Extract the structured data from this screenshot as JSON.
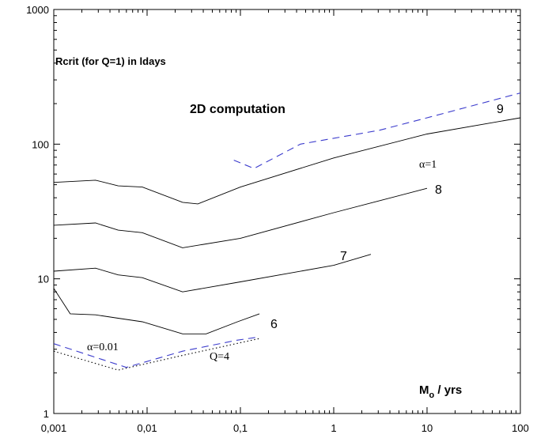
{
  "chart_data": {
    "type": "line",
    "xlog": true,
    "ylog": true,
    "xlim": [
      0.001,
      100
    ],
    "ylim": [
      1,
      1000
    ],
    "xticks": [
      {
        "value": 0.001,
        "label": "0,001"
      },
      {
        "value": 0.01,
        "label": "0,01"
      },
      {
        "value": 0.1,
        "label": "0,1"
      },
      1,
      10,
      100
    ],
    "yticks": [
      1,
      10,
      100,
      1000
    ],
    "annotations": [
      "Rcrit (for Q=1) in ldays",
      "2D computation"
    ],
    "xlabel": {
      "main": "M",
      "sub": "o",
      "rest": " / yrs"
    },
    "series": [
      {
        "name": "9",
        "color": "#000000",
        "dash": "solid",
        "x": [
          0.001,
          0.0028,
          0.0049,
          0.0089,
          0.024,
          0.035,
          0.1,
          1,
          10,
          100
        ],
        "values": [
          52,
          54,
          49,
          48,
          37,
          36,
          48,
          79,
          119,
          157
        ]
      },
      {
        "name": "8",
        "color": "#000000",
        "dash": "solid",
        "x": [
          0.001,
          0.0028,
          0.0049,
          0.0089,
          0.024,
          0.1,
          1,
          10
        ],
        "values": [
          25,
          26,
          23,
          22,
          17,
          20,
          31,
          47
        ]
      },
      {
        "name": "7",
        "color": "#000000",
        "dash": "solid",
        "x": [
          0.001,
          0.0028,
          0.0049,
          0.0089,
          0.024,
          0.1,
          1,
          2.5
        ],
        "values": [
          11.4,
          12,
          10.7,
          10.2,
          8.0,
          9.5,
          12.6,
          15.2
        ]
      },
      {
        "name": "6",
        "color": "#000000",
        "dash": "solid",
        "x": [
          0.001,
          0.0015,
          0.0028,
          0.0049,
          0.0089,
          0.024,
          0.043,
          0.093,
          0.16
        ],
        "values": [
          8.5,
          5.5,
          5.4,
          5.1,
          4.8,
          3.9,
          3.9,
          4.8,
          5.5
        ]
      },
      {
        "name": "α=1",
        "color": "#3a3acc",
        "dash": "dashed",
        "x": [
          0.085,
          0.14,
          0.44,
          3.1,
          10,
          100
        ],
        "values": [
          76,
          66,
          100,
          127,
          157,
          240
        ]
      },
      {
        "name": "α=0.01",
        "color": "#3a3acc",
        "dash": "dashed",
        "x": [
          0.001,
          0.0034,
          0.006,
          0.024,
          0.092,
          0.16
        ],
        "values": [
          3.3,
          2.5,
          2.2,
          2.9,
          3.5,
          3.7
        ]
      },
      {
        "name": "Q=4",
        "color": "#000000",
        "dash": "dotted",
        "x": [
          0.001,
          0.0049,
          0.024,
          0.16
        ],
        "values": [
          2.9,
          2.1,
          2.7,
          3.6
        ]
      }
    ]
  }
}
